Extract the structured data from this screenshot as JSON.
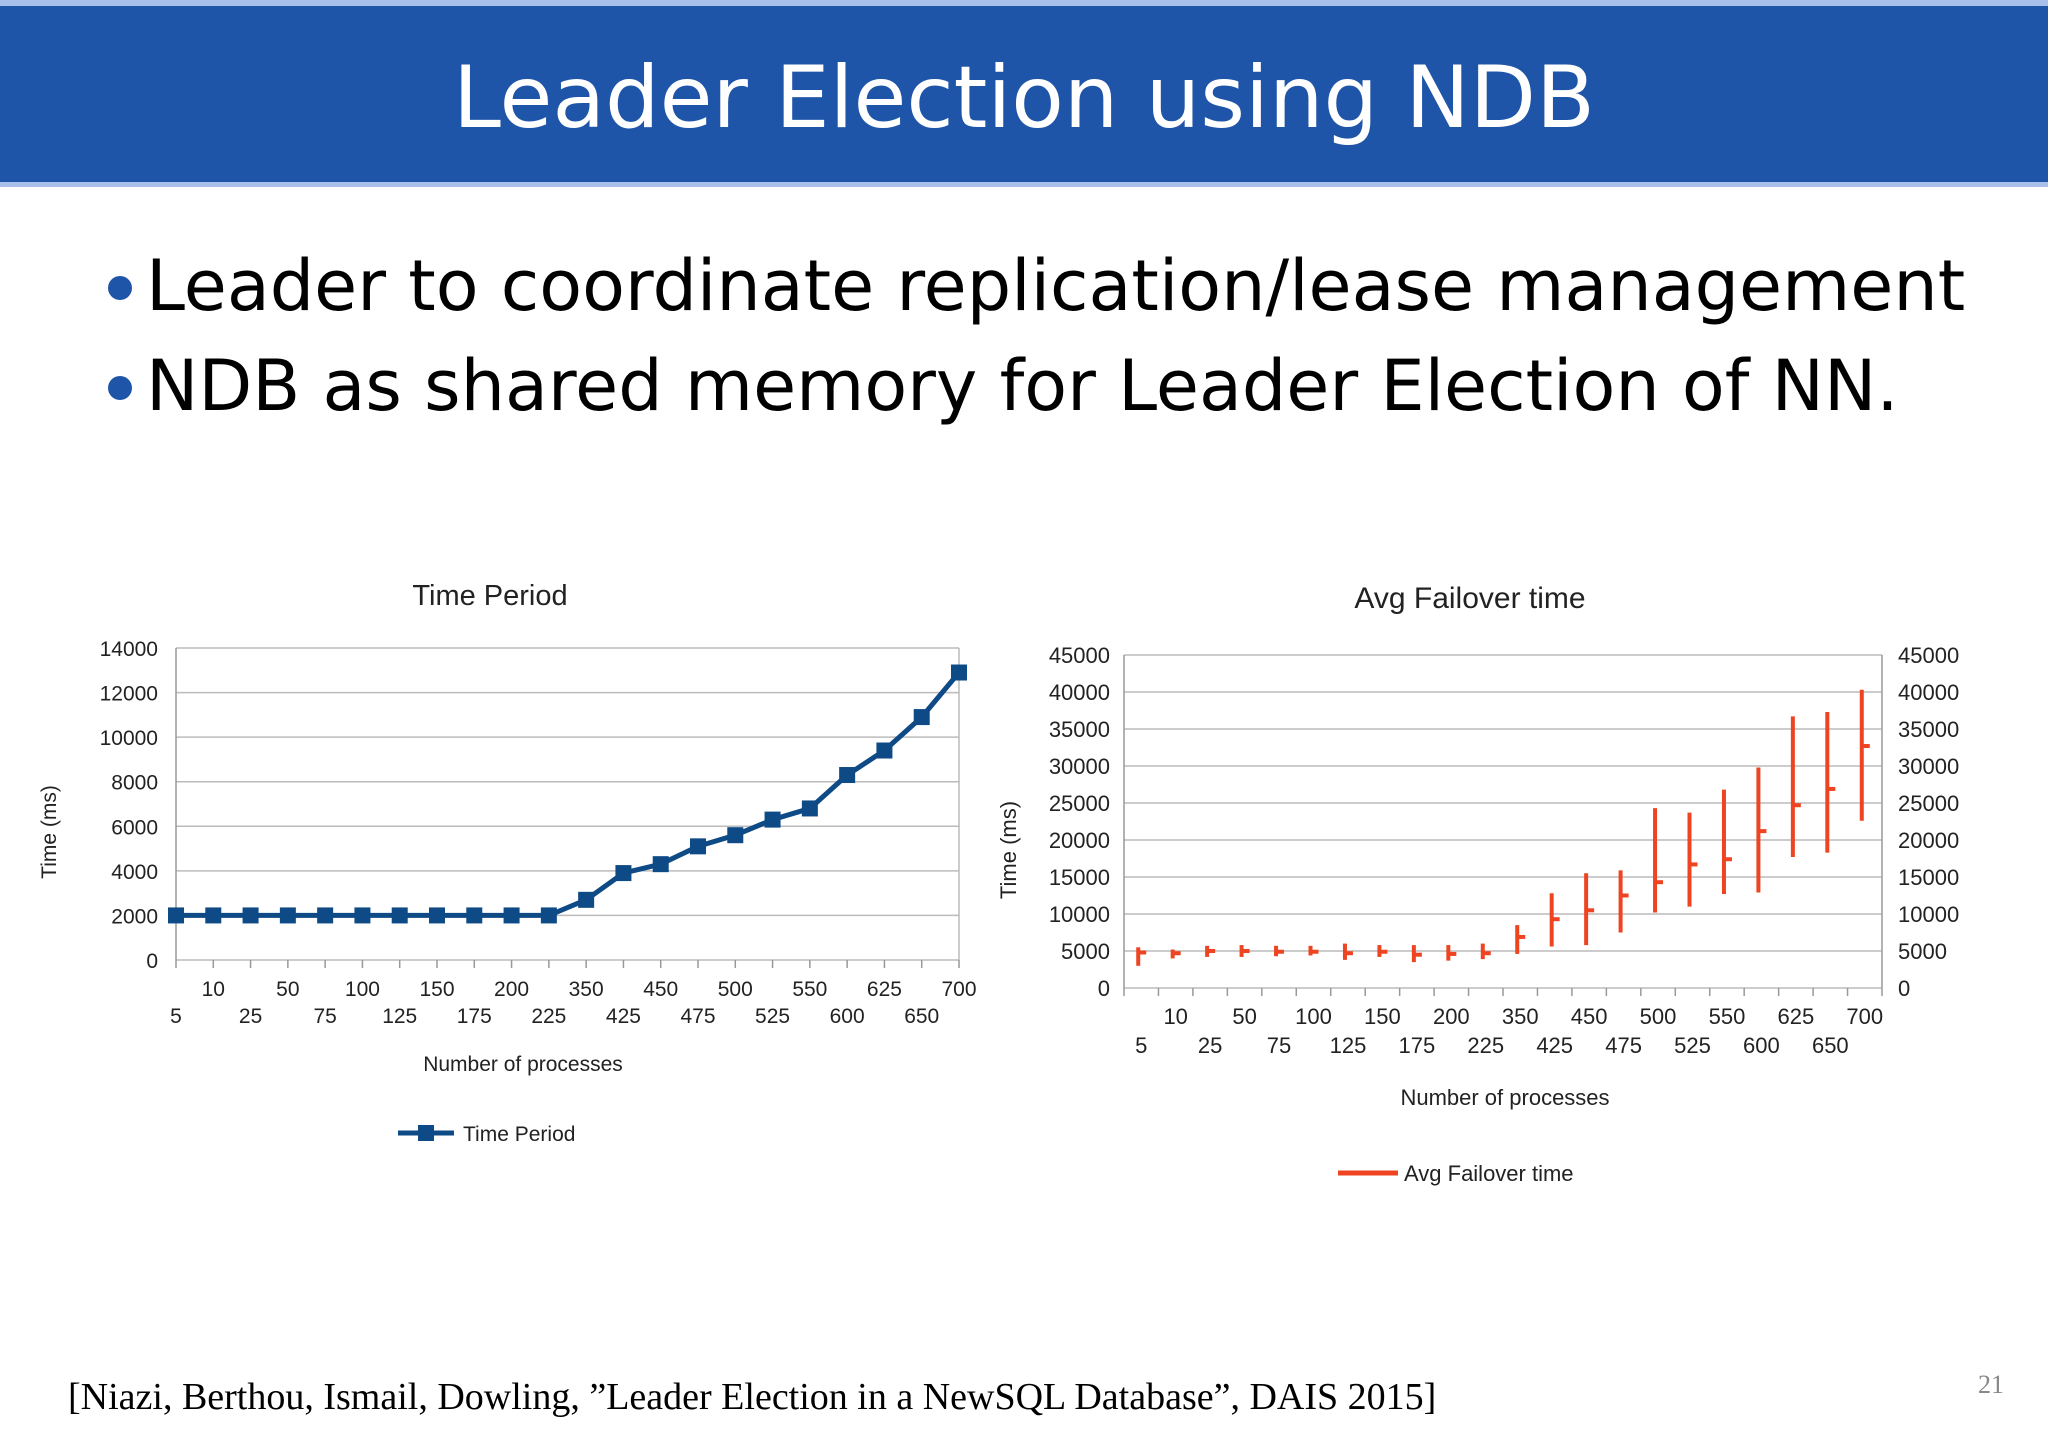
{
  "slide": {
    "title": "Leader Election using NDB",
    "bullets": [
      "Leader to coordinate replication/lease management",
      "NDB as shared memory for Leader Election of NN."
    ],
    "citation": "[Niazi, Berthou, Ismail, Dowling, ”Leader Election in a NewSQL Database”, DAIS 2015]",
    "page_number": "21",
    "colors": {
      "banner": "#1f55a8",
      "accent_line": "#a9c0ea",
      "bullet": "#1f55a8"
    }
  },
  "chart_data": [
    {
      "type": "line",
      "title": "Time Period",
      "xlabel": "Number of processes",
      "ylabel": "Time (ms)",
      "ylim": [
        0,
        14000
      ],
      "yticks": [
        0,
        2000,
        4000,
        6000,
        8000,
        10000,
        12000,
        14000
      ],
      "grid": true,
      "legend": "bottom",
      "color": "#0e4a86",
      "marker": "square",
      "categories": [
        "5",
        "10",
        "25",
        "50",
        "75",
        "100",
        "125",
        "150",
        "175",
        "200",
        "225",
        "350",
        "425",
        "450",
        "475",
        "500",
        "525",
        "550",
        "600",
        "625",
        "650",
        "700"
      ],
      "series": [
        {
          "name": "Time Period",
          "values": [
            2000,
            2000,
            2000,
            2000,
            2000,
            2000,
            2000,
            2000,
            2000,
            2000,
            2000,
            2700,
            3900,
            4300,
            5100,
            5600,
            6300,
            6800,
            8300,
            9400,
            10900,
            12900
          ]
        }
      ]
    },
    {
      "type": "stock",
      "title": "Avg Failover time",
      "xlabel": "Number of processes",
      "ylabel": "Time (ms)",
      "ylim": [
        0,
        45000
      ],
      "yticks": [
        0,
        5000,
        10000,
        15000,
        20000,
        25000,
        30000,
        35000,
        40000,
        45000
      ],
      "secondary_axis": true,
      "grid": true,
      "legend": "bottom",
      "color": "#ee4422",
      "categories": [
        "5",
        "10",
        "25",
        "50",
        "75",
        "100",
        "125",
        "150",
        "175",
        "200",
        "225",
        "350",
        "425",
        "450",
        "475",
        "500",
        "525",
        "550",
        "600",
        "625",
        "650",
        "700"
      ],
      "series": [
        {
          "name": "Avg Failover time",
          "low": [
            3000,
            4000,
            4200,
            4200,
            4300,
            4400,
            3800,
            4200,
            3500,
            3700,
            3900,
            4600,
            5600,
            5800,
            7500,
            10200,
            11000,
            12700,
            12900,
            17700,
            18300,
            22600
          ],
          "high": [
            5500,
            5200,
            5700,
            5800,
            5700,
            5700,
            6000,
            5800,
            5800,
            5800,
            6000,
            8500,
            12800,
            15500,
            15900,
            24300,
            23700,
            26800,
            29800,
            36700,
            37300,
            40300
          ],
          "avg": [
            4800,
            4700,
            5000,
            5000,
            4900,
            4900,
            4700,
            4900,
            4500,
            4600,
            4700,
            6900,
            9300,
            10500,
            12500,
            14300,
            16700,
            17400,
            21200,
            24700,
            26900,
            32700
          ]
        }
      ]
    }
  ]
}
